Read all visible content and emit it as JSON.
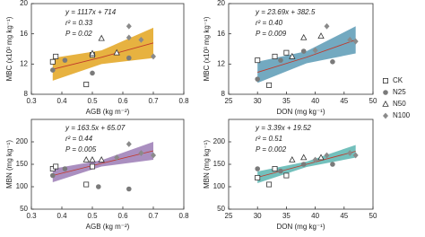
{
  "chart_data": [
    {
      "type": "scatter",
      "xlabel": "AGB (kg m⁻²)",
      "ylabel": "MBC (x10³ mg kg⁻¹)",
      "annotations": [
        "y = 1117x + 714",
        "r² = 0.33",
        "P = 0.02"
      ],
      "xlim": [
        0.3,
        0.8
      ],
      "xticks": [
        0.3,
        0.4,
        0.5,
        0.6,
        0.7,
        0.8
      ],
      "ylim": [
        8,
        20
      ],
      "yticks": [
        8,
        12,
        16,
        20
      ],
      "series": [
        {
          "name": "CK",
          "marker": "square",
          "color": "#ffffff",
          "x": [
            0.37,
            0.38,
            0.48,
            0.5
          ],
          "values": [
            12.3,
            13.0,
            9.3,
            13.2
          ]
        },
        {
          "name": "N25",
          "marker": "circle",
          "color": "#7a7a7a",
          "x": [
            0.37,
            0.41,
            0.5,
            0.62
          ],
          "values": [
            11.2,
            12.5,
            10.8,
            12.8
          ]
        },
        {
          "name": "N50",
          "marker": "triangle",
          "color": "#ffffff",
          "x": [
            0.5,
            0.53,
            0.58
          ],
          "values": [
            13.4,
            15.4,
            13.5
          ]
        },
        {
          "name": "N100",
          "marker": "diamond",
          "color": "#8a8a8a",
          "x": [
            0.62,
            0.66,
            0.7,
            0.62
          ],
          "values": [
            17.0,
            15.2,
            13.0,
            15.5
          ]
        }
      ],
      "fit": {
        "color": "#e3a41e",
        "x": [
          0.37,
          0.53,
          0.7
        ],
        "values": [
          11.3,
          12.9,
          14.8
        ],
        "lower": [
          9.8,
          12.0,
          12.8
        ],
        "upper": [
          12.8,
          13.8,
          16.8
        ]
      }
    },
    {
      "type": "scatter",
      "xlabel": "DON (mg kg⁻¹)",
      "ylabel": "MBC (x10³ mg kg⁻¹)",
      "annotations": [
        "y = 23.69x + 382.5",
        "r² = 0.40",
        "P = 0.009"
      ],
      "xlim": [
        25,
        50
      ],
      "xticks": [
        25,
        30,
        35,
        40,
        45,
        50
      ],
      "ylim": [
        8,
        20
      ],
      "yticks": [
        8,
        12,
        16,
        20
      ],
      "series": [
        {
          "name": "CK",
          "marker": "square",
          "color": "#ffffff",
          "x": [
            30,
            32,
            33,
            35
          ],
          "values": [
            12.5,
            9.2,
            13.0,
            13.5
          ]
        },
        {
          "name": "N25",
          "marker": "circle",
          "color": "#7a7a7a",
          "x": [
            30,
            34,
            38,
            43
          ],
          "values": [
            10.0,
            12.5,
            13.7,
            12.3
          ]
        },
        {
          "name": "N50",
          "marker": "triangle",
          "color": "#ffffff",
          "x": [
            36,
            38,
            41
          ],
          "values": [
            13.0,
            15.5,
            15.7
          ]
        },
        {
          "name": "N100",
          "marker": "diamond",
          "color": "#8a8a8a",
          "x": [
            42,
            46,
            47,
            40
          ],
          "values": [
            17.0,
            15.2,
            15.0,
            13.8
          ]
        }
      ],
      "fit": {
        "color": "#5b9ab5",
        "x": [
          30,
          38.5,
          47
        ],
        "values": [
          10.9,
          12.9,
          15.2
        ],
        "lower": [
          9.5,
          12.1,
          13.4
        ],
        "upper": [
          12.3,
          13.7,
          17.0
        ]
      }
    },
    {
      "type": "scatter",
      "xlabel": "AGB (kg m⁻²)",
      "ylabel": "MBN (mg kg⁻¹)",
      "annotations": [
        "y = 163.5x + 65.07",
        "r² = 0.44",
        "P = 0.005"
      ],
      "xlim": [
        0.3,
        0.8
      ],
      "xticks": [
        0.3,
        0.4,
        0.5,
        0.6,
        0.7,
        0.8
      ],
      "ylim": [
        50,
        250
      ],
      "yticks": [
        50,
        100,
        150,
        200
      ],
      "series": [
        {
          "name": "CK",
          "marker": "square",
          "color": "#ffffff",
          "x": [
            0.37,
            0.38,
            0.48,
            0.5
          ],
          "values": [
            140,
            145,
            105,
            145
          ]
        },
        {
          "name": "N25",
          "marker": "circle",
          "color": "#7a7a7a",
          "x": [
            0.37,
            0.41,
            0.52,
            0.62
          ],
          "values": [
            125,
            140,
            100,
            95
          ]
        },
        {
          "name": "N50",
          "marker": "triangle",
          "color": "#ffffff",
          "x": [
            0.48,
            0.5,
            0.53
          ],
          "values": [
            160,
            160,
            160
          ]
        },
        {
          "name": "N100",
          "marker": "diamond",
          "color": "#8a8a8a",
          "x": [
            0.62,
            0.66,
            0.7,
            0.58
          ],
          "values": [
            195,
            175,
            170,
            165
          ]
        }
      ],
      "fit": {
        "color": "#9b7bb5",
        "x": [
          0.37,
          0.53,
          0.7
        ],
        "values": [
          125,
          152,
          180
        ],
        "lower": [
          110,
          145,
          160
        ],
        "upper": [
          140,
          159,
          200
        ]
      }
    },
    {
      "type": "scatter",
      "xlabel": "DON (mg kg⁻¹)",
      "ylabel": "MBN (mg kg⁻¹)",
      "annotations": [
        "y = 3.39x + 19.52",
        "r² = 0.51",
        "P = 0.002"
      ],
      "xlim": [
        25,
        50
      ],
      "xticks": [
        25,
        30,
        35,
        40,
        45,
        50
      ],
      "ylim": [
        50,
        250
      ],
      "yticks": [
        50,
        100,
        150,
        200
      ],
      "series": [
        {
          "name": "CK",
          "marker": "square",
          "color": "#ffffff",
          "x": [
            30,
            32,
            33,
            35
          ],
          "values": [
            120,
            105,
            140,
            125
          ]
        },
        {
          "name": "N25",
          "marker": "circle",
          "color": "#7a7a7a",
          "x": [
            30,
            34,
            38,
            43
          ],
          "values": [
            140,
            135,
            150,
            150
          ]
        },
        {
          "name": "N50",
          "marker": "triangle",
          "color": "#ffffff",
          "x": [
            36,
            38,
            41
          ],
          "values": [
            160,
            165,
            165
          ]
        },
        {
          "name": "N100",
          "marker": "diamond",
          "color": "#8a8a8a",
          "x": [
            42,
            46,
            47,
            40
          ],
          "values": [
            170,
            175,
            170,
            160
          ]
        }
      ],
      "fit": {
        "color": "#5bb5b0",
        "x": [
          30,
          38.5,
          47
        ],
        "values": [
          121,
          150,
          179
        ],
        "lower": [
          108,
          144,
          165
        ],
        "upper": [
          134,
          156,
          193
        ]
      }
    }
  ]
}
